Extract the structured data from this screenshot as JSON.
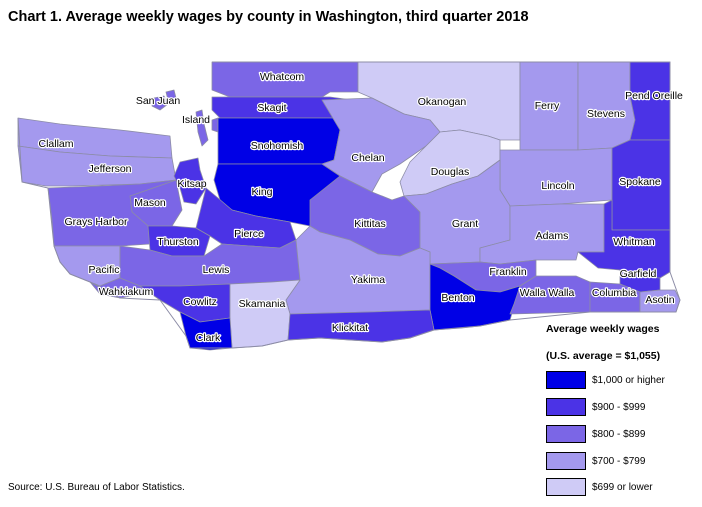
{
  "title": "Chart 1. Average weekly wages by county in Washington, third quarter 2018",
  "source": "Source: U.S. Bureau of Labor Statistics.",
  "legend": {
    "title": "Average weekly wages",
    "subtitle": "(U.S. average = $1,055)",
    "items": [
      {
        "label": "$1,000 or higher",
        "color": "#0000e6"
      },
      {
        "label": "$900 - $999",
        "color": "#4b33e6"
      },
      {
        "label": "$800 - $899",
        "color": "#7b66e6"
      },
      {
        "label": "$700 - $799",
        "color": "#a499ee"
      },
      {
        "label": "$699 or lower",
        "color": "#cfcbf6"
      }
    ]
  },
  "counties": [
    {
      "name": "Whatcom",
      "class": "$800 - $899"
    },
    {
      "name": "San Juan",
      "class": "$800 - $899"
    },
    {
      "name": "Skagit",
      "class": "$900 - $999"
    },
    {
      "name": "Island",
      "class": "$800 - $899"
    },
    {
      "name": "Okanogan",
      "class": "$699 or lower"
    },
    {
      "name": "Ferry",
      "class": "$700 - $799"
    },
    {
      "name": "Stevens",
      "class": "$700 - $799"
    },
    {
      "name": "Pend Oreille",
      "class": "$900 - $999"
    },
    {
      "name": "Clallam",
      "class": "$700 - $799"
    },
    {
      "name": "Jefferson",
      "class": "$700 - $799"
    },
    {
      "name": "Snohomish",
      "class": "$1,000 or higher"
    },
    {
      "name": "Chelan",
      "class": "$700 - $799"
    },
    {
      "name": "Douglas",
      "class": "$699 or lower"
    },
    {
      "name": "Kitsap",
      "class": "$900 - $999"
    },
    {
      "name": "King",
      "class": "$1,000 or higher"
    },
    {
      "name": "Lincoln",
      "class": "$700 - $799"
    },
    {
      "name": "Spokane",
      "class": "$900 - $999"
    },
    {
      "name": "Mason",
      "class": "$800 - $899"
    },
    {
      "name": "Grays Harbor",
      "class": "$800 - $899"
    },
    {
      "name": "Kittitas",
      "class": "$800 - $899"
    },
    {
      "name": "Grant",
      "class": "$700 - $799"
    },
    {
      "name": "Thurston",
      "class": "$900 - $999"
    },
    {
      "name": "Pierce",
      "class": "$900 - $999"
    },
    {
      "name": "Adams",
      "class": "$700 - $799"
    },
    {
      "name": "Whitman",
      "class": "$900 - $999"
    },
    {
      "name": "Pacific",
      "class": "$700 - $799"
    },
    {
      "name": "Lewis",
      "class": "$800 - $899"
    },
    {
      "name": "Yakima",
      "class": "$700 - $799"
    },
    {
      "name": "Franklin",
      "class": "$800 - $899"
    },
    {
      "name": "Garfield",
      "class": "$900 - $999"
    },
    {
      "name": "Wahkiakum",
      "class": "$800 - $899"
    },
    {
      "name": "Benton",
      "class": "$1,000 or higher"
    },
    {
      "name": "Walla Walla",
      "class": "$800 - $899"
    },
    {
      "name": "Columbia",
      "class": "$800 - $899"
    },
    {
      "name": "Asotin",
      "class": "$700 - $799"
    },
    {
      "name": "Cowlitz",
      "class": "$900 - $999"
    },
    {
      "name": "Skamania",
      "class": "$699 or lower"
    },
    {
      "name": "Klickitat",
      "class": "$900 - $999"
    },
    {
      "name": "Clark",
      "class": "$1,000 or higher"
    }
  ]
}
